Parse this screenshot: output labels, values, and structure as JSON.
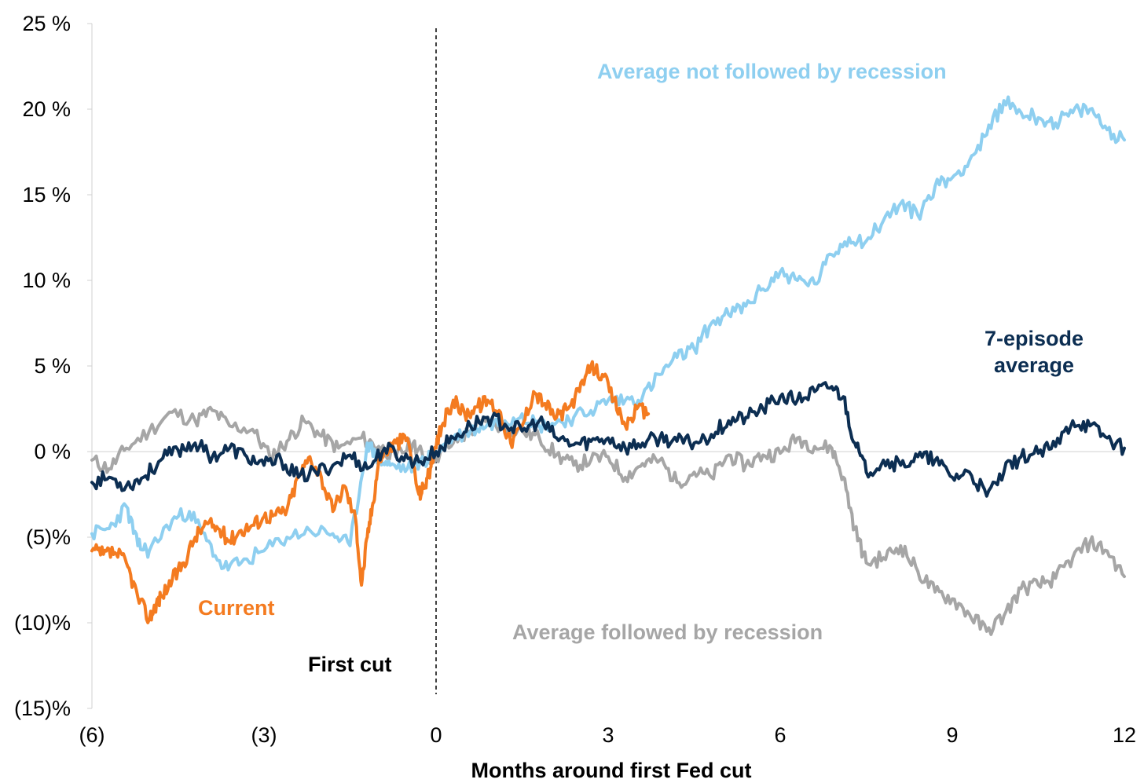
{
  "chart_data": {
    "type": "line",
    "title": "",
    "xlabel": "Months around first Fed cut",
    "ylabel": "",
    "xlim": [
      -6,
      12
    ],
    "ylim": [
      -15,
      25
    ],
    "x_ticks": [
      -6,
      -3,
      0,
      3,
      6,
      9,
      12
    ],
    "x_tick_labels": [
      "(6)",
      "(3)",
      "0",
      "3",
      "6",
      "9",
      "12"
    ],
    "y_ticks": [
      25,
      20,
      15,
      10,
      5,
      0,
      -5,
      -10,
      -15
    ],
    "y_tick_labels": [
      "25 %",
      "20 %",
      "15 %",
      "10 %",
      "5 %",
      "0 %",
      "(5)%",
      "(10)%",
      "(15)%"
    ],
    "vline": {
      "x": 0,
      "label": "First cut",
      "style": "dashed"
    },
    "series": [
      {
        "name": "Average followed by recession",
        "color": "#a6a6a6",
        "x": [
          -6,
          -5.7,
          -5.4,
          -5,
          -4.6,
          -4.2,
          -3.9,
          -3.6,
          -3.2,
          -2.9,
          -2.6,
          -2.3,
          -2,
          -1.7,
          -1.3,
          -1,
          -0.7,
          -0.4,
          -0.2,
          0,
          0.3,
          0.6,
          0.9,
          1.2,
          1.5,
          1.8,
          2.1,
          2.4,
          2.7,
          3,
          3.3,
          3.6,
          3.9,
          4.2,
          4.5,
          4.8,
          5.1,
          5.4,
          5.7,
          6,
          6.3,
          6.6,
          6.9,
          7.1,
          7.3,
          7.5,
          7.8,
          8.1,
          8.4,
          8.7,
          9,
          9.3,
          9.6,
          9.9,
          10.2,
          10.5,
          10.8,
          11.1,
          11.4,
          11.7,
          12
        ],
        "y": [
          -0.5,
          -1,
          0.2,
          1.2,
          2.3,
          1.8,
          2.4,
          1.5,
          1.3,
          -0.3,
          0.6,
          1.8,
          0.9,
          0.2,
          0.8,
          0.3,
          -0.3,
          0.5,
          -0.4,
          -0.3,
          0.5,
          1.2,
          1.8,
          1.4,
          1.2,
          0.8,
          -0.2,
          -0.8,
          -0.5,
          -0.3,
          -1.5,
          -0.7,
          -0.5,
          -1.8,
          -1.2,
          -1.5,
          -0.2,
          -0.8,
          -0.2,
          -0.1,
          0.8,
          0.3,
          0.2,
          -1.5,
          -4.5,
          -6.5,
          -6.2,
          -5.5,
          -7,
          -8.2,
          -8.6,
          -9.5,
          -10.5,
          -9.6,
          -8,
          -7.8,
          -7.4,
          -6.2,
          -5.3,
          -5.8,
          -7.3
        ]
      },
      {
        "name": "Average not followed by recession",
        "color": "#8ecff0",
        "x": [
          -6,
          -5.7,
          -5.4,
          -5.2,
          -5,
          -4.6,
          -4.3,
          -4,
          -3.7,
          -3.4,
          -3,
          -2.6,
          -2.2,
          -1.8,
          -1.5,
          -1.2,
          -1,
          -0.8,
          -0.5,
          -0.2,
          0,
          0.3,
          0.6,
          0.9,
          1.2,
          1.5,
          1.8,
          2.1,
          2.4,
          2.7,
          3,
          3.3,
          3.6,
          3.9,
          4.2,
          4.5,
          4.8,
          5.1,
          5.4,
          5.7,
          6,
          6.3,
          6.6,
          6.9,
          7.2,
          7.5,
          7.8,
          8.1,
          8.4,
          8.7,
          9,
          9.3,
          9.6,
          9.9,
          10.2,
          10.5,
          10.8,
          11.1,
          11.4,
          11.7,
          12
        ],
        "y": [
          -4.8,
          -4.5,
          -3.2,
          -5.5,
          -5.8,
          -4,
          -3.5,
          -5.2,
          -6.8,
          -6.5,
          -5.8,
          -5,
          -4.6,
          -4.8,
          -5.5,
          0.5,
          -0.5,
          -0.8,
          -1,
          -0.5,
          0,
          0.8,
          1.2,
          1.6,
          1.8,
          2.2,
          1.5,
          1.7,
          2,
          2.4,
          3,
          3,
          3.2,
          4.5,
          5.5,
          6,
          7.5,
          8,
          8.5,
          9.5,
          10.5,
          10,
          9.8,
          11.5,
          12.5,
          12.3,
          13.5,
          14.5,
          13.8,
          15.5,
          16,
          17,
          18.5,
          20.5,
          19.8,
          19.5,
          19.2,
          19.8,
          20,
          18.8,
          18.2
        ]
      },
      {
        "name": "Current",
        "color": "#f47b20",
        "x": [
          -6,
          -5.8,
          -5.6,
          -5.4,
          -5.2,
          -5,
          -4.9,
          -4.8,
          -4.6,
          -4.4,
          -4.2,
          -4,
          -3.8,
          -3.6,
          -3.4,
          -3.2,
          -3,
          -2.8,
          -2.6,
          -2.4,
          -2.2,
          -2,
          -1.8,
          -1.6,
          -1.4,
          -1.3,
          -1.2,
          -1.1,
          -1,
          -0.9,
          -0.7,
          -0.5,
          -0.3,
          -0.2,
          -0.1,
          0,
          0.1,
          0.3,
          0.5,
          0.7,
          0.9,
          1.1,
          1.3,
          1.5,
          1.7,
          1.9,
          2.1,
          2.3,
          2.5,
          2.7,
          2.9,
          3.1,
          3.3,
          3.5,
          3.7
        ],
        "y": [
          -5.8,
          -6,
          -5.9,
          -6.5,
          -8.5,
          -9.8,
          -9,
          -8.5,
          -7.5,
          -6.5,
          -5,
          -4.2,
          -4.5,
          -5.2,
          -4.6,
          -4.3,
          -3.8,
          -3.7,
          -3.4,
          -1.5,
          -0.3,
          -1.5,
          -3.5,
          -2,
          -4,
          -7.8,
          -5,
          -3,
          -0.5,
          0,
          0.5,
          0.8,
          -2.5,
          -2,
          -1,
          0.2,
          1.5,
          3,
          2.2,
          2.6,
          3,
          2.4,
          0.5,
          1.5,
          3.5,
          2.8,
          2,
          2.5,
          3.5,
          5,
          4.5,
          3,
          1.5,
          2.5,
          2.2
        ]
      },
      {
        "name": "7-episode average",
        "color": "#0c2e52",
        "x": [
          -6,
          -5.7,
          -5.4,
          -5.1,
          -4.8,
          -4.5,
          -4.2,
          -3.9,
          -3.6,
          -3.3,
          -3,
          -2.7,
          -2.4,
          -2.1,
          -1.8,
          -1.5,
          -1.2,
          -0.9,
          -0.6,
          -0.3,
          0,
          0.3,
          0.6,
          0.9,
          1.2,
          1.5,
          1.8,
          2.1,
          2.4,
          2.7,
          3,
          3.3,
          3.6,
          3.9,
          4.2,
          4.5,
          4.8,
          5.1,
          5.4,
          5.7,
          6,
          6.3,
          6.6,
          6.9,
          7.1,
          7.3,
          7.5,
          7.8,
          8.1,
          8.4,
          8.7,
          9,
          9.3,
          9.6,
          9.9,
          10.2,
          10.5,
          10.8,
          11.1,
          11.4,
          11.7,
          12
        ],
        "y": [
          -1.8,
          -1.5,
          -2,
          -1.5,
          -0.5,
          0.1,
          0.5,
          -0.3,
          0.2,
          -0.3,
          -0.8,
          -0.5,
          -1.5,
          -1.2,
          -0.8,
          -0.2,
          -1,
          0.2,
          -0.3,
          -0.6,
          0,
          0.8,
          1.5,
          2,
          1.6,
          1.2,
          1.8,
          0.8,
          0.4,
          0.6,
          0.8,
          0.2,
          0.5,
          0.8,
          0.6,
          0.5,
          1,
          1.8,
          2,
          2.5,
          3.2,
          3,
          3.5,
          3.8,
          3.2,
          0.5,
          -1.2,
          -0.5,
          -0.8,
          -0.3,
          -0.5,
          -1.5,
          -1.2,
          -2.6,
          -1.2,
          -0.3,
          -0.1,
          0.3,
          1.8,
          1.5,
          0.8,
          0.2
        ]
      }
    ],
    "annotations": [
      {
        "text": "Average not followed by recession",
        "color": "#8ecff0"
      },
      {
        "text": "7-episode",
        "color": "#0c2e52"
      },
      {
        "text": "average",
        "color": "#0c2e52"
      },
      {
        "text": "Current",
        "color": "#f47b20"
      },
      {
        "text": "Average followed by recession",
        "color": "#a6a6a6"
      },
      {
        "text": "First cut",
        "color": "#000000"
      }
    ]
  }
}
